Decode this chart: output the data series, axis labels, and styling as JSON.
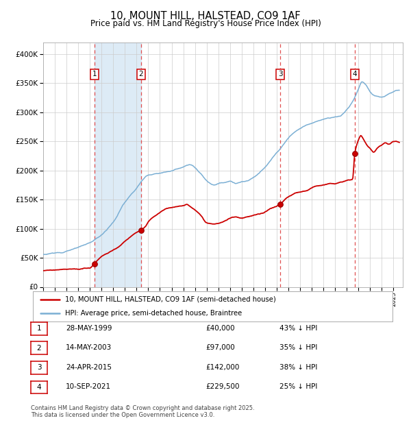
{
  "title": "10, MOUNT HILL, HALSTEAD, CO9 1AF",
  "subtitle": "Price paid vs. HM Land Registry's House Price Index (HPI)",
  "title_fontsize": 10.5,
  "subtitle_fontsize": 8.5,
  "background_color": "#ffffff",
  "plot_bg_color": "#ffffff",
  "grid_color": "#cccccc",
  "hpi_line_color": "#7bafd4",
  "price_line_color": "#cc0000",
  "marker_color": "#cc0000",
  "dashed_line_color": "#e05050",
  "shade_color": "#d8e8f5",
  "ylim": [
    0,
    420000
  ],
  "yticks": [
    0,
    50000,
    100000,
    150000,
    200000,
    250000,
    300000,
    350000,
    400000
  ],
  "transactions": [
    {
      "label": "1",
      "date": "28-MAY-1999",
      "price": 40000,
      "hpi_pct": "43% ↓ HPI",
      "x": 1999.41
    },
    {
      "label": "2",
      "date": "14-MAY-2003",
      "price": 97000,
      "hpi_pct": "35% ↓ HPI",
      "x": 2003.37
    },
    {
      "label": "3",
      "date": "24-APR-2015",
      "price": 142000,
      "hpi_pct": "38% ↓ HPI",
      "x": 2015.32
    },
    {
      "label": "4",
      "date": "10-SEP-2021",
      "price": 229500,
      "hpi_pct": "25% ↓ HPI",
      "x": 2021.69
    }
  ],
  "legend_entries": [
    {
      "label": "10, MOUNT HILL, HALSTEAD, CO9 1AF (semi-detached house)",
      "color": "#cc0000"
    },
    {
      "label": "HPI: Average price, semi-detached house, Braintree",
      "color": "#7bafd4"
    }
  ],
  "footer_lines": [
    "Contains HM Land Registry data © Crown copyright and database right 2025.",
    "This data is licensed under the Open Government Licence v3.0."
  ],
  "hpi_keypoints": [
    [
      1995.0,
      56000
    ],
    [
      1996.0,
      58000
    ],
    [
      1997.0,
      62000
    ],
    [
      1998.0,
      68000
    ],
    [
      1999.0,
      76000
    ],
    [
      2000.0,
      90000
    ],
    [
      2001.0,
      112000
    ],
    [
      2002.0,
      145000
    ],
    [
      2003.0,
      170000
    ],
    [
      2004.0,
      192000
    ],
    [
      2005.0,
      196000
    ],
    [
      2006.0,
      200000
    ],
    [
      2007.0,
      207000
    ],
    [
      2007.5,
      210000
    ],
    [
      2008.0,
      205000
    ],
    [
      2008.5,
      195000
    ],
    [
      2009.0,
      183000
    ],
    [
      2009.5,
      175000
    ],
    [
      2010.0,
      178000
    ],
    [
      2010.5,
      180000
    ],
    [
      2011.0,
      182000
    ],
    [
      2011.5,
      178000
    ],
    [
      2012.0,
      180000
    ],
    [
      2012.5,
      183000
    ],
    [
      2013.0,
      188000
    ],
    [
      2013.5,
      195000
    ],
    [
      2014.0,
      205000
    ],
    [
      2014.5,
      218000
    ],
    [
      2015.0,
      230000
    ],
    [
      2015.5,
      242000
    ],
    [
      2016.0,
      255000
    ],
    [
      2016.5,
      265000
    ],
    [
      2017.0,
      272000
    ],
    [
      2017.5,
      278000
    ],
    [
      2018.0,
      282000
    ],
    [
      2018.5,
      285000
    ],
    [
      2019.0,
      288000
    ],
    [
      2019.5,
      290000
    ],
    [
      2020.0,
      291000
    ],
    [
      2020.5,
      295000
    ],
    [
      2021.0,
      305000
    ],
    [
      2021.5,
      318000
    ],
    [
      2022.0,
      340000
    ],
    [
      2022.3,
      352000
    ],
    [
      2022.6,
      348000
    ],
    [
      2023.0,
      336000
    ],
    [
      2023.3,
      330000
    ],
    [
      2023.6,
      328000
    ],
    [
      2024.0,
      326000
    ],
    [
      2024.3,
      328000
    ],
    [
      2024.6,
      332000
    ],
    [
      2025.0,
      335000
    ],
    [
      2025.5,
      337000
    ]
  ],
  "price_keypoints": [
    [
      1995.0,
      28000
    ],
    [
      1995.5,
      28500
    ],
    [
      1996.0,
      29000
    ],
    [
      1996.5,
      29500
    ],
    [
      1997.0,
      30000
    ],
    [
      1997.5,
      30500
    ],
    [
      1998.0,
      31000
    ],
    [
      1998.5,
      32000
    ],
    [
      1999.0,
      33000
    ],
    [
      1999.41,
      40000
    ],
    [
      2000.0,
      52000
    ],
    [
      2000.5,
      58000
    ],
    [
      2001.0,
      64000
    ],
    [
      2001.5,
      70000
    ],
    [
      2002.0,
      78000
    ],
    [
      2002.5,
      87000
    ],
    [
      2003.0,
      93000
    ],
    [
      2003.37,
      97000
    ],
    [
      2003.8,
      105000
    ],
    [
      2004.0,
      112000
    ],
    [
      2004.5,
      120000
    ],
    [
      2005.0,
      128000
    ],
    [
      2005.5,
      134000
    ],
    [
      2006.0,
      136000
    ],
    [
      2006.5,
      138000
    ],
    [
      2007.0,
      140000
    ],
    [
      2007.3,
      142000
    ],
    [
      2007.6,
      138000
    ],
    [
      2008.0,
      132000
    ],
    [
      2008.5,
      122000
    ],
    [
      2009.0,
      110000
    ],
    [
      2009.5,
      108000
    ],
    [
      2010.0,
      110000
    ],
    [
      2010.5,
      113000
    ],
    [
      2011.0,
      118000
    ],
    [
      2011.5,
      120000
    ],
    [
      2012.0,
      118000
    ],
    [
      2012.5,
      120000
    ],
    [
      2013.0,
      122000
    ],
    [
      2013.5,
      125000
    ],
    [
      2014.0,
      128000
    ],
    [
      2014.5,
      135000
    ],
    [
      2015.0,
      138000
    ],
    [
      2015.32,
      142000
    ],
    [
      2015.6,
      148000
    ],
    [
      2016.0,
      155000
    ],
    [
      2016.5,
      160000
    ],
    [
      2017.0,
      163000
    ],
    [
      2017.5,
      165000
    ],
    [
      2018.0,
      170000
    ],
    [
      2018.5,
      173000
    ],
    [
      2019.0,
      175000
    ],
    [
      2019.5,
      177000
    ],
    [
      2020.0,
      178000
    ],
    [
      2020.5,
      180000
    ],
    [
      2021.0,
      183000
    ],
    [
      2021.5,
      185000
    ],
    [
      2021.69,
      229500
    ],
    [
      2022.0,
      252000
    ],
    [
      2022.2,
      260000
    ],
    [
      2022.4,
      255000
    ],
    [
      2022.6,
      248000
    ],
    [
      2022.8,
      242000
    ],
    [
      2023.0,
      238000
    ],
    [
      2023.3,
      232000
    ],
    [
      2023.6,
      238000
    ],
    [
      2024.0,
      244000
    ],
    [
      2024.3,
      248000
    ],
    [
      2024.6,
      246000
    ],
    [
      2025.0,
      250000
    ],
    [
      2025.5,
      248000
    ]
  ]
}
